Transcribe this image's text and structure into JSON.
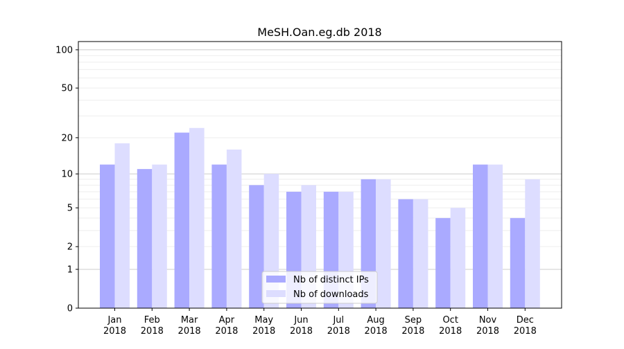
{
  "chart_data": {
    "type": "bar",
    "title": "MeSH.Oan.eg.db 2018",
    "xlabel": "",
    "ylabel": "",
    "yscale": "log(1+y)",
    "ylim": [
      0,
      116
    ],
    "yticks": [
      0,
      1,
      2,
      5,
      10,
      20,
      50,
      100
    ],
    "grid": true,
    "legend_position": "bottom-center",
    "categories": [
      "Jan\n2018",
      "Feb\n2018",
      "Mar\n2018",
      "Apr\n2018",
      "May\n2018",
      "Jun\n2018",
      "Jul\n2018",
      "Aug\n2018",
      "Sep\n2018",
      "Oct\n2018",
      "Nov\n2018",
      "Dec\n2018"
    ],
    "series": [
      {
        "name": "Nb of distinct IPs",
        "color": "#aaaaff",
        "values": [
          12,
          11,
          22,
          12,
          8,
          7,
          7,
          9,
          6,
          4,
          12,
          4
        ]
      },
      {
        "name": "Nb of downloads",
        "color": "#ddddff",
        "values": [
          18,
          12,
          24,
          16,
          10,
          8,
          7,
          9,
          6,
          5,
          12,
          9
        ]
      }
    ]
  }
}
